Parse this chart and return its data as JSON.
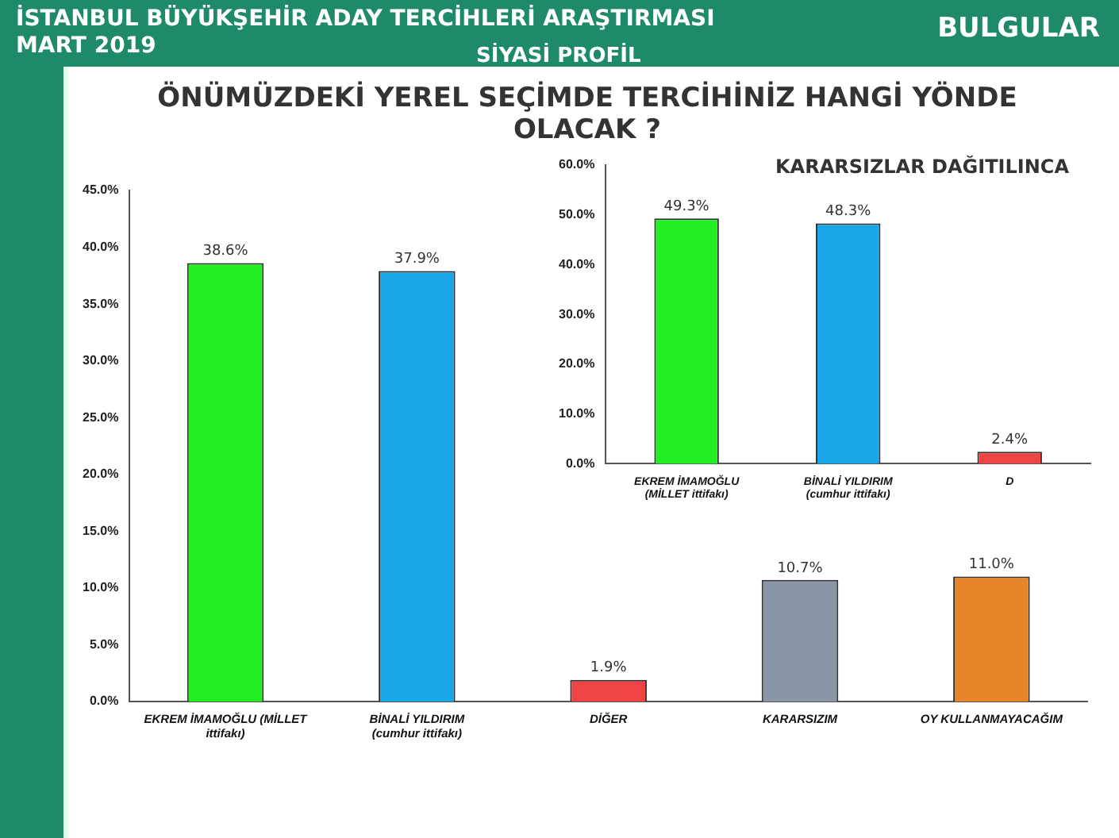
{
  "chart_data": [
    {
      "type": "bar",
      "title": "ÖNÜMÜZDEKİ YEREL SEÇİMDE TERCİHİNİZ HANGİ YÖNDE OLACAK ?",
      "annotations": [
        "İSTANBUL BÜYÜKŞEHİR ADAY TERCİHLERİ ARAŞTIRMASI",
        "MART  2019",
        "BULGULAR",
        "SİYASİ PROFİL"
      ],
      "categories": [
        "EKREM İMAMOĞLU (MİLLET ittifakı)",
        "BİNALİ YILDIRIM (cumhur ittifakı)",
        "DİĞER",
        "KARARSIZIM",
        "OY KULLANMAYACAĞIM"
      ],
      "values": [
        38.6,
        37.9,
        1.9,
        10.7,
        11.0
      ],
      "colors": [
        "#22ee22",
        "#1aa8e8",
        "#ee4444",
        "#8a96a8",
        "#e8842a"
      ],
      "value_labels": [
        "38.6%",
        "37.9%",
        "1.9%",
        "10.7%",
        "11.0%"
      ],
      "ylim": [
        0,
        45
      ],
      "yticks": [
        {
          "value": 0,
          "label": "0.0%"
        },
        {
          "value": 5,
          "label": "5.0%"
        },
        {
          "value": 10,
          "label": "10.0%"
        },
        {
          "value": 15,
          "label": "15.0%"
        },
        {
          "value": 20,
          "label": "20.0%"
        },
        {
          "value": 25,
          "label": "25.0%"
        },
        {
          "value": 30,
          "label": "30.0%"
        },
        {
          "value": 35,
          "label": "35.0%"
        },
        {
          "value": 40,
          "label": "40.0%"
        },
        {
          "value": 45,
          "label": "45.0%"
        }
      ],
      "grid": false,
      "legend": false
    },
    {
      "type": "bar",
      "title": "KARARSIZLAR DAĞITILINCA",
      "categories": [
        "EKREM İMAMOĞLU (MİLLET ittifakı)",
        "BİNALİ YILDIRIM (cumhur ittifakı)",
        "D"
      ],
      "values": [
        49.3,
        48.3,
        2.4
      ],
      "colors": [
        "#22ee22",
        "#1aa8e8",
        "#ee4444"
      ],
      "value_labels": [
        "49.3%",
        "48.3%",
        "2.4%"
      ],
      "ylim": [
        0,
        60
      ],
      "yticks": [
        {
          "value": 0,
          "label": "0.0%"
        },
        {
          "value": 10,
          "label": "10.0%"
        },
        {
          "value": 20,
          "label": "20.0%"
        },
        {
          "value": 30,
          "label": "30.0%"
        },
        {
          "value": 40,
          "label": "40.0%"
        },
        {
          "value": 50,
          "label": "50.0%"
        },
        {
          "value": 60,
          "label": "60.0%"
        }
      ],
      "grid": false,
      "legend": false
    }
  ]
}
